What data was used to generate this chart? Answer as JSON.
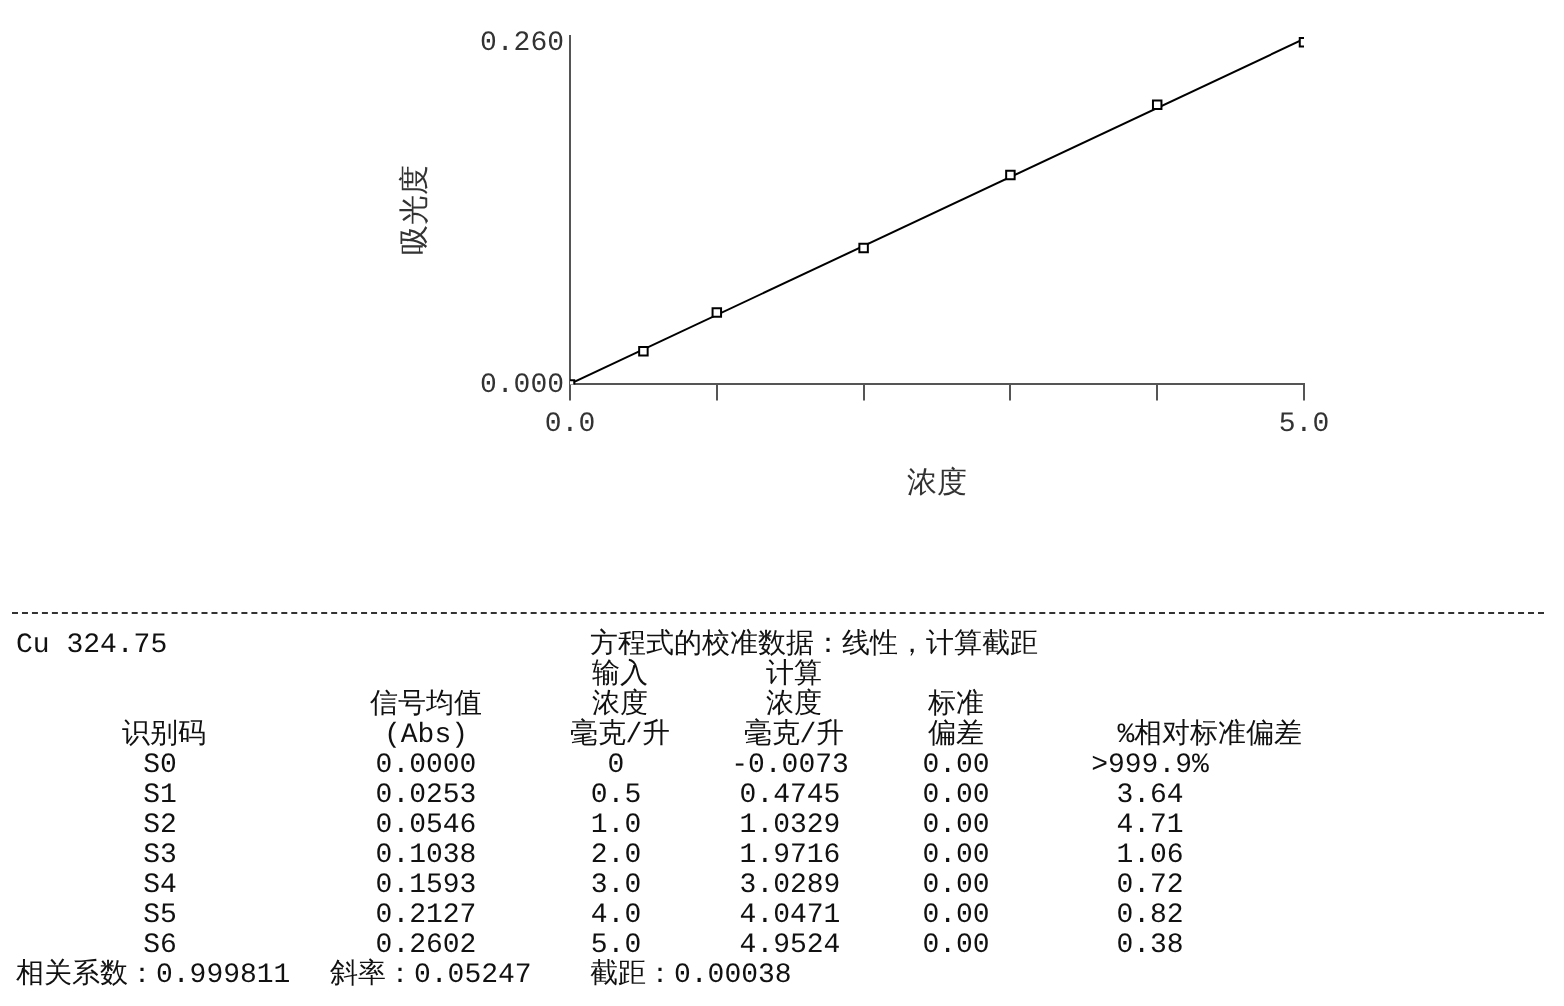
{
  "chart_data": {
    "type": "scatter",
    "xlabel": "浓度",
    "ylabel": "吸光度",
    "xlim": [
      0,
      5
    ],
    "ylim": [
      0,
      0.265
    ],
    "xticks": [
      {
        "value": 0,
        "label": "0.0"
      },
      {
        "value": 1,
        "label": null
      },
      {
        "value": 2,
        "label": null
      },
      {
        "value": 3,
        "label": null
      },
      {
        "value": 4,
        "label": null
      },
      {
        "value": 5,
        "label": "5.0"
      }
    ],
    "yticks": [
      {
        "value": 0,
        "label": "0.000"
      },
      {
        "value": 0.26,
        "label": "0.260"
      }
    ],
    "series": [
      {
        "marker": "square",
        "color": "#000000",
        "x": [
          0,
          0.5,
          1,
          2,
          3,
          4,
          5
        ],
        "values": [
          0.0,
          0.0253,
          0.0546,
          0.1038,
          0.1593,
          0.2127,
          0.2602
        ]
      },
      {
        "type": "line",
        "marker": "none",
        "color": "#000000",
        "x": [
          0,
          5
        ],
        "values": [
          0.00038,
          0.26273
        ]
      }
    ],
    "annotations": [
      "Cu 324.75",
      "方程式的校准数据：线性，计算截距",
      "识别码",
      "信号均值",
      "(Abs)",
      "输入",
      "浓度",
      "毫克/升",
      "计算",
      "浓度",
      "毫克/升",
      "标准",
      "偏差",
      "%相对标准偏差",
      "S0",
      "0.0000",
      "0",
      "-0.0073",
      "0.00",
      ">999.9%",
      "S1",
      "0.0253",
      "0.5",
      "0.4745",
      "0.00",
      "3.64",
      "S2",
      "0.0546",
      "1.0",
      "1.0329",
      "0.00",
      "4.71",
      "S3",
      "0.1038",
      "2.0",
      "1.9716",
      "0.00",
      "1.06",
      "S4",
      "0.1593",
      "3.0",
      "3.0289",
      "0.00",
      "0.72",
      "S5",
      "0.2127",
      "4.0",
      "4.0471",
      "0.00",
      "0.82",
      "S6",
      "0.2602",
      "5.0",
      "4.9524",
      "0.00",
      "0.38",
      "相关系数：0.999811",
      "斜率：0.05247",
      "截距：0.00038"
    ]
  }
}
